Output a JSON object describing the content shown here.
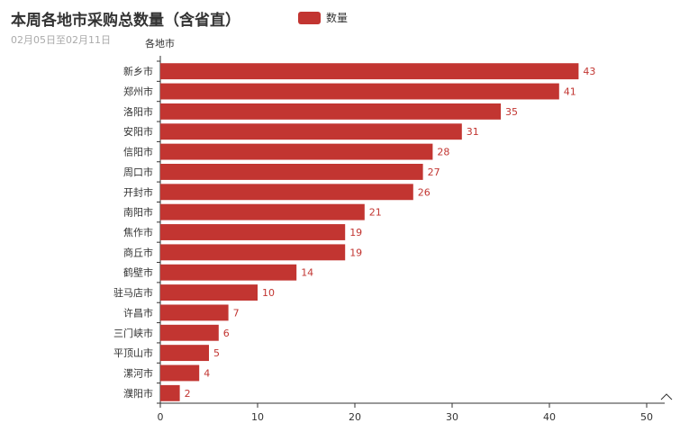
{
  "chart_data": {
    "type": "bar",
    "orientation": "horizontal",
    "title": "本周各地市采购总数量（含省直）",
    "subtitle": "02月05日至02月11日",
    "ylabel": "各地市",
    "xlabel": "",
    "legend": {
      "position": "top",
      "entries": [
        "数量"
      ]
    },
    "categories": [
      "新乡市",
      "郑州市",
      "洛阳市",
      "安阳市",
      "信阳市",
      "周口市",
      "开封市",
      "南阳市",
      "焦作市",
      "商丘市",
      "鹤壁市",
      "驻马店市",
      "许昌市",
      "三门峡市",
      "平顶山市",
      "漯河市",
      "濮阳市"
    ],
    "series": [
      {
        "name": "数量",
        "values": [
          43,
          41,
          35,
          31,
          28,
          27,
          26,
          21,
          19,
          19,
          14,
          10,
          7,
          6,
          5,
          4,
          2
        ]
      }
    ],
    "xlim": [
      0,
      50
    ],
    "xticks": [
      0,
      10,
      20,
      30,
      40,
      50
    ],
    "grid": false,
    "colors": {
      "bar": "#c23531",
      "text": "#333333",
      "subtitle": "#aaaaaa"
    }
  }
}
